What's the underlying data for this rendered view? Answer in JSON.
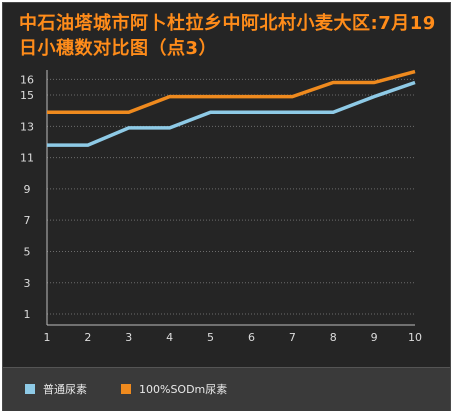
{
  "chart_data": {
    "type": "line",
    "title": "中石油塔城市阿卜杜拉乡中阿北村小麦大区:7月19日小穗数对比图（点3）",
    "x": [
      1,
      2,
      3,
      4,
      5,
      6,
      7,
      8,
      9,
      10
    ],
    "series": [
      {
        "name": "普通尿素",
        "color": "#8ecae6",
        "values": [
          11.8,
          11.8,
          12.9,
          12.9,
          13.9,
          13.9,
          13.9,
          13.9,
          14.9,
          15.8
        ]
      },
      {
        "name": "100%SODm尿素",
        "color": "#ef8a1e",
        "values": [
          13.9,
          13.9,
          13.9,
          14.9,
          14.9,
          14.9,
          14.9,
          15.8,
          15.8,
          16.5
        ]
      }
    ],
    "yticks": [
      1,
      3,
      5,
      7,
      9,
      11,
      13,
      15,
      16
    ],
    "ylim": [
      0.3,
      16.6
    ],
    "xlim": [
      1,
      10
    ],
    "grid": true,
    "legend_position": "bottom"
  }
}
